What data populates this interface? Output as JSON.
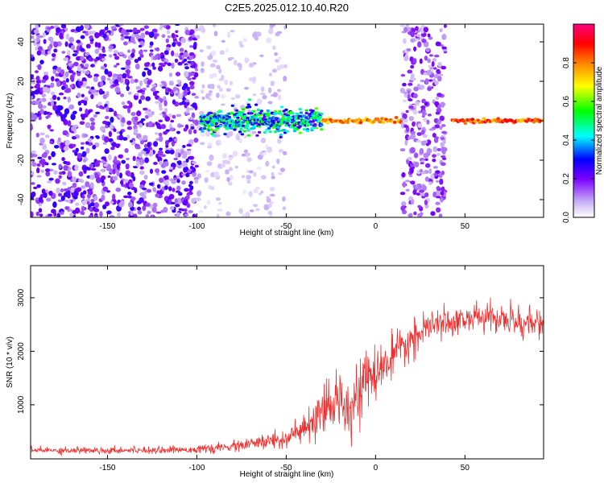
{
  "title": "C2E5.2025.012.10.40.R20",
  "chart_data": [
    {
      "type": "heatmap",
      "title": "C2E5.2025.012.10.40.R20",
      "xlabel": "Height of straight line (km)",
      "ylabel": "Frequency (Hz)",
      "xlim": [
        -193,
        94
      ],
      "ylim": [
        -49,
        49
      ],
      "xticks": [
        -150,
        -100,
        -50,
        0,
        50
      ],
      "yticks": [
        -40,
        -20,
        0,
        20,
        40
      ],
      "colorbar": {
        "label": "Normalized spectral amplitude",
        "range": [
          0,
          1
        ],
        "ticks": [
          0.0,
          0.2,
          0.4,
          0.6,
          0.8
        ],
        "colormap": [
          "#ffffff",
          "#c8b0f5",
          "#7a00ff",
          "#0000ff",
          "#00ffff",
          "#00ff00",
          "#ffff00",
          "#ff8000",
          "#ff0000",
          "#ff0080"
        ]
      },
      "features": [
        {
          "name": "scattered noise",
          "x_range": [
            -193,
            -100
          ],
          "y_range": [
            -49,
            49
          ],
          "amplitude": 0.15
        },
        {
          "name": "weak noise",
          "x_range": [
            -100,
            -50
          ],
          "y_range": [
            -49,
            49
          ],
          "amplitude": 0.05
        },
        {
          "name": "signal band",
          "x_range": [
            -98,
            -30
          ],
          "center_freq": 0,
          "width_hz": 8,
          "amplitude": 0.4
        },
        {
          "name": "signal line",
          "x_range": [
            -30,
            15
          ],
          "center_freq": 0,
          "amplitude": 0.8
        },
        {
          "name": "broadband gap",
          "x_range": [
            15,
            39
          ],
          "y_range": [
            -49,
            49
          ],
          "amplitude": 0.12
        },
        {
          "name": "signal line",
          "x_range": [
            43,
            94
          ],
          "center_freq": 0,
          "amplitude": 0.85
        }
      ]
    },
    {
      "type": "line",
      "xlabel": "Height of straight line (km)",
      "ylabel": "SNR (10 * v/v)",
      "xlim": [
        -193,
        94
      ],
      "ylim": [
        -10,
        3600
      ],
      "xticks": [
        -150,
        -100,
        -50,
        0,
        50
      ],
      "yticks": [
        1000,
        2000,
        3000
      ],
      "color": "#ee3030",
      "series": [
        {
          "x": [
            -193,
            -150,
            -110,
            -90,
            -80,
            -70,
            -60,
            -50,
            -40,
            -35,
            -30,
            -25,
            -20,
            -15,
            -10,
            -5,
            0,
            5,
            10,
            20,
            30,
            40,
            50,
            60,
            70,
            80,
            94
          ],
          "y": [
            150,
            150,
            160,
            180,
            220,
            260,
            320,
            380,
            520,
            650,
            800,
            950,
            1150,
            1000,
            1250,
            1450,
            1550,
            1750,
            1900,
            2200,
            2450,
            2550,
            2600,
            2650,
            2600,
            2550,
            2500
          ],
          "noise": [
            60,
            60,
            60,
            70,
            90,
            110,
            150,
            200,
            260,
            320,
            380,
            420,
            500,
            560,
            520,
            480,
            440,
            400,
            350,
            300,
            260,
            240,
            230,
            240,
            260,
            300,
            260
          ]
        }
      ]
    }
  ]
}
